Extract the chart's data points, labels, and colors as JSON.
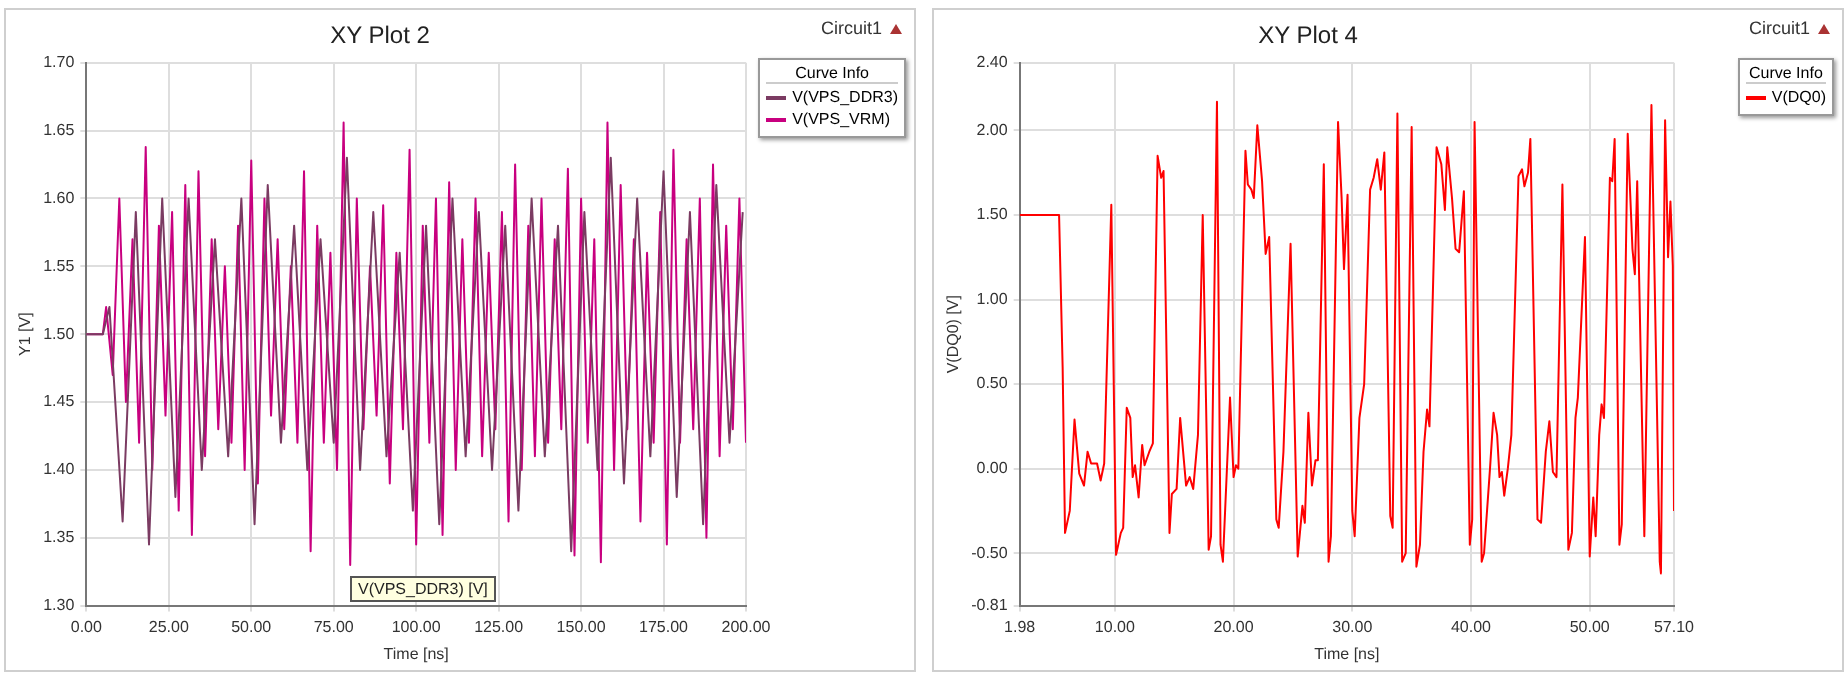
{
  "chart_data": [
    {
      "type": "line",
      "title": "XY Plot 2",
      "xlabel": "Time [ns]",
      "ylabel": "Y1 [V]",
      "legend_title": "Curve Info",
      "legend": "top right",
      "grid": true,
      "marker": "none",
      "line_style": "solid",
      "xlim": [
        0,
        200
      ],
      "xticks": [
        {
          "value": 0,
          "label": "0.00"
        },
        {
          "value": 25,
          "label": "25.00"
        },
        {
          "value": 50,
          "label": "50.00"
        },
        {
          "value": 75,
          "label": "75.00"
        },
        {
          "value": 100,
          "label": "100.00"
        },
        {
          "value": 125,
          "label": "125.00"
        },
        {
          "value": 150,
          "label": "150.00"
        },
        {
          "value": 175,
          "label": "175.00"
        },
        {
          "value": 200,
          "label": "200.00"
        }
      ],
      "ylim": [
        1.3,
        1.7
      ],
      "yticks": [
        {
          "value": 1.3,
          "label": "1.30"
        },
        {
          "value": 1.35,
          "label": "1.35"
        },
        {
          "value": 1.4,
          "label": "1.40"
        },
        {
          "value": 1.45,
          "label": "1.45"
        },
        {
          "value": 1.5,
          "label": "1.50"
        },
        {
          "value": 1.55,
          "label": "1.55"
        },
        {
          "value": 1.6,
          "label": "1.60"
        },
        {
          "value": 1.65,
          "label": "1.65"
        },
        {
          "value": 1.7,
          "label": "1.70"
        }
      ],
      "annotations": [
        "Circuit1",
        "V(VPS_DDR3) [V]"
      ],
      "series": [
        {
          "name": "V(VPS_DDR3)",
          "color": "#7b3b62",
          "x": [
            0,
            5,
            7,
            11,
            15,
            19,
            23,
            27,
            31,
            35,
            39,
            43,
            47,
            51,
            55,
            59,
            63,
            67,
            71,
            75,
            79,
            83,
            87,
            91,
            95,
            99,
            103,
            107,
            111,
            115,
            119,
            123,
            127,
            131,
            135,
            139,
            143,
            147,
            151,
            155,
            159,
            163,
            167,
            171,
            175,
            179,
            183,
            187,
            191,
            195,
            199
          ],
          "values": [
            1.5,
            1.5,
            1.52,
            1.362,
            1.59,
            1.345,
            1.6,
            1.38,
            1.6,
            1.4,
            1.57,
            1.41,
            1.6,
            1.36,
            1.61,
            1.42,
            1.58,
            1.4,
            1.57,
            1.42,
            1.63,
            1.4,
            1.59,
            1.41,
            1.56,
            1.37,
            1.58,
            1.36,
            1.6,
            1.41,
            1.59,
            1.4,
            1.58,
            1.37,
            1.6,
            1.41,
            1.58,
            1.34,
            1.59,
            1.4,
            1.63,
            1.39,
            1.6,
            1.41,
            1.62,
            1.38,
            1.59,
            1.36,
            1.61,
            1.42,
            1.59
          ]
        },
        {
          "name": "V(VPS_VRM)",
          "color": "#c8007f",
          "x": [
            0,
            5,
            6,
            8,
            10,
            12,
            14,
            16,
            18,
            20,
            22,
            24,
            26,
            28,
            30,
            32,
            34,
            36,
            38,
            40,
            42,
            44,
            46,
            48,
            50,
            52,
            54,
            56,
            58,
            60,
            62,
            64,
            66,
            68,
            70,
            72,
            74,
            76,
            78,
            80,
            82,
            84,
            86,
            88,
            90,
            92,
            94,
            96,
            98,
            100,
            102,
            104,
            106,
            108,
            110,
            112,
            114,
            116,
            118,
            120,
            122,
            124,
            126,
            128,
            130,
            132,
            134,
            136,
            138,
            140,
            142,
            144,
            146,
            148,
            150,
            152,
            154,
            156,
            158,
            160,
            162,
            164,
            166,
            168,
            170,
            172,
            174,
            176,
            178,
            180,
            182,
            184,
            186,
            188,
            190,
            192,
            194,
            196,
            198,
            200
          ],
          "values": [
            1.5,
            1.5,
            1.52,
            1.47,
            1.6,
            1.45,
            1.57,
            1.42,
            1.638,
            1.4,
            1.58,
            1.44,
            1.59,
            1.37,
            1.61,
            1.352,
            1.62,
            1.41,
            1.57,
            1.43,
            1.55,
            1.42,
            1.58,
            1.4,
            1.628,
            1.39,
            1.6,
            1.44,
            1.57,
            1.43,
            1.55,
            1.42,
            1.62,
            1.34,
            1.58,
            1.42,
            1.56,
            1.4,
            1.656,
            1.33,
            1.6,
            1.43,
            1.55,
            1.44,
            1.595,
            1.39,
            1.56,
            1.43,
            1.636,
            1.345,
            1.58,
            1.42,
            1.6,
            1.352,
            1.612,
            1.4,
            1.57,
            1.42,
            1.6,
            1.41,
            1.56,
            1.43,
            1.59,
            1.362,
            1.625,
            1.4,
            1.58,
            1.41,
            1.6,
            1.42,
            1.57,
            1.43,
            1.622,
            1.337,
            1.6,
            1.42,
            1.57,
            1.332,
            1.656,
            1.4,
            1.61,
            1.43,
            1.57,
            1.362,
            1.56,
            1.42,
            1.59,
            1.345,
            1.636,
            1.42,
            1.57,
            1.43,
            1.6,
            1.35,
            1.625,
            1.41,
            1.58,
            1.43,
            1.6,
            1.42
          ]
        }
      ]
    },
    {
      "type": "line",
      "title": "XY Plot 4",
      "xlabel": "Time [ns]",
      "ylabel": "V(DQ0) [V]",
      "legend_title": "Curve Info",
      "legend": "top right",
      "grid": true,
      "marker": "none",
      "line_style": "solid",
      "xlim": [
        1.98,
        57.1
      ],
      "xticks": [
        {
          "value": 1.98,
          "label": "1.98"
        },
        {
          "value": 10,
          "label": "10.00"
        },
        {
          "value": 20,
          "label": "20.00"
        },
        {
          "value": 30,
          "label": "30.00"
        },
        {
          "value": 40,
          "label": "40.00"
        },
        {
          "value": 50,
          "label": "50.00"
        },
        {
          "value": 57.1,
          "label": "57.10"
        }
      ],
      "ylim": [
        -0.81,
        2.4
      ],
      "yticks": [
        -0.81,
        {
          "value": -0.5,
          "label": "-0.50"
        },
        {
          "value": 0,
          "label": "0.00"
        },
        {
          "value": 0.5,
          "label": "0.50"
        },
        {
          "value": 1,
          "label": "1.00"
        },
        {
          "value": 1.5,
          "label": "1.50"
        },
        {
          "value": 2,
          "label": "2.00"
        },
        {
          "value": 2.4,
          "label": "2.40"
        }
      ],
      "annotations": [
        "Circuit1"
      ],
      "series": [
        {
          "name": "V(DQ0)",
          "color": "#ff0000",
          "x": [
            1.98,
            5.3,
            5.6,
            5.8,
            6.2,
            6.6,
            7.0,
            7.4,
            7.7,
            8.0,
            8.5,
            8.8,
            9.1,
            9.7,
            10.1,
            10.5,
            10.7,
            11.0,
            11.3,
            11.5,
            11.7,
            12.0,
            12.3,
            12.5,
            12.9,
            13.2,
            13.6,
            13.9,
            14.1,
            14.6,
            14.8,
            15.2,
            15.5,
            16.0,
            16.3,
            16.6,
            17.0,
            17.4,
            17.9,
            18.1,
            18.6,
            18.9,
            19.1,
            19.7,
            20.0,
            20.2,
            20.4,
            21.0,
            21.2,
            21.5,
            21.7,
            22.0,
            22.4,
            22.7,
            23.0,
            23.6,
            23.8,
            24.2,
            24.8,
            25.4,
            25.8,
            26.0,
            26.3,
            26.6,
            26.9,
            27.1,
            27.6,
            28.0,
            28.2,
            28.8,
            29.1,
            29.3,
            29.6,
            30.0,
            30.2,
            30.6,
            31.0,
            31.5,
            31.8,
            32.1,
            32.4,
            32.7,
            33.2,
            33.4,
            33.8,
            34.2,
            34.5,
            35.0,
            35.4,
            35.7,
            36.0,
            36.3,
            36.5,
            37.1,
            37.5,
            37.8,
            38.0,
            38.4,
            38.7,
            39.0,
            39.4,
            39.9,
            40.1,
            40.3,
            40.9,
            41.1,
            41.6,
            41.9,
            42.2,
            42.4,
            42.6,
            42.8,
            43.1,
            43.4,
            44.0,
            44.3,
            44.5,
            44.8,
            45.0,
            45.6,
            45.9,
            46.3,
            46.6,
            46.9,
            47.2,
            47.7,
            48.2,
            48.5,
            48.8,
            49.0,
            49.6,
            50.0,
            50.3,
            50.5,
            50.8,
            51.0,
            51.2,
            51.7,
            51.9,
            52.1,
            52.5,
            52.7,
            53.2,
            53.6,
            53.8,
            54.0,
            54.6,
            55.2,
            55.9,
            56.0,
            56.35,
            56.6,
            56.8,
            57.0,
            57.1
          ],
          "values": [
            1.5,
            1.5,
            0.6,
            -0.38,
            -0.25,
            0.29,
            -0.03,
            -0.1,
            0.1,
            0.03,
            0.03,
            -0.07,
            0.03,
            1.56,
            -0.51,
            -0.38,
            -0.35,
            0.36,
            0.3,
            -0.05,
            0.02,
            -0.17,
            0.14,
            0.02,
            0.1,
            0.15,
            1.85,
            1.72,
            1.76,
            -0.38,
            -0.15,
            -0.12,
            0.3,
            -0.1,
            -0.05,
            -0.12,
            0.2,
            1.5,
            -0.48,
            -0.4,
            2.17,
            -0.45,
            -0.55,
            0.42,
            -0.05,
            0.02,
            0.0,
            1.88,
            1.68,
            1.65,
            1.6,
            2.03,
            1.7,
            1.27,
            1.37,
            -0.3,
            -0.35,
            0.1,
            1.33,
            -0.52,
            -0.22,
            -0.32,
            0.33,
            -0.1,
            0.05,
            0.05,
            1.8,
            -0.55,
            -0.4,
            2.05,
            1.6,
            1.18,
            1.62,
            -0.25,
            -0.4,
            0.3,
            0.5,
            1.65,
            1.72,
            1.83,
            1.65,
            1.87,
            -0.28,
            -0.35,
            2.1,
            -0.55,
            -0.5,
            2.02,
            -0.58,
            -0.45,
            0.1,
            0.35,
            0.25,
            1.9,
            1.8,
            1.53,
            1.9,
            1.6,
            1.3,
            1.28,
            1.64,
            -0.45,
            -0.3,
            2.05,
            -0.55,
            -0.5,
            0.0,
            0.33,
            0.2,
            -0.05,
            -0.02,
            -0.16,
            0.0,
            0.2,
            1.73,
            1.77,
            1.67,
            1.75,
            1.95,
            -0.3,
            -0.32,
            0.1,
            0.28,
            -0.02,
            -0.05,
            1.68,
            -0.48,
            -0.38,
            0.3,
            0.42,
            1.37,
            -0.52,
            -0.17,
            -0.4,
            0.2,
            0.38,
            0.3,
            1.72,
            1.7,
            1.95,
            -0.45,
            -0.33,
            1.98,
            1.3,
            1.15,
            1.7,
            -0.4,
            2.15,
            -0.55,
            -0.62,
            2.06,
            1.25,
            1.58,
            1.2,
            -0.25
          ]
        }
      ]
    }
  ]
}
